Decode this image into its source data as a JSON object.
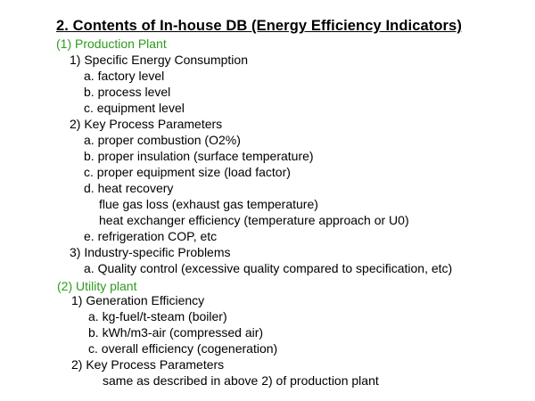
{
  "title": "2. Contents of In-house DB (Energy Efficiency Indicators)",
  "colors": {
    "section_heading": "#2e9a1e",
    "text": "#000000",
    "background": "#ffffff"
  },
  "lines": [
    "(1) Production Plant",
    "1) Specific Energy Consumption",
    "a. factory level",
    "b. process level",
    "c. equipment level",
    "2) Key Process Parameters",
    "a. proper combustion (O2%)",
    "b. proper insulation  (surface temperature)",
    "c. proper equipment size (load factor)",
    "d. heat recovery",
    "flue gas loss (exhaust gas temperature)",
    "heat exchanger efficiency (temperature approach or U0)",
    "e. refrigeration COP, etc",
    "3) Industry-specific Problems",
    "a. Quality control (excessive quality compared to specification, etc)",
    "(2) Utility plant",
    "1) Generation Efficiency",
    "a. kg-fuel/t-steam (boiler)",
    "b. kWh/m3-air (compressed air)",
    "c. overall efficiency (cogeneration)",
    "2) Key Process Parameters",
    "same as described in above 2) of production plant"
  ]
}
